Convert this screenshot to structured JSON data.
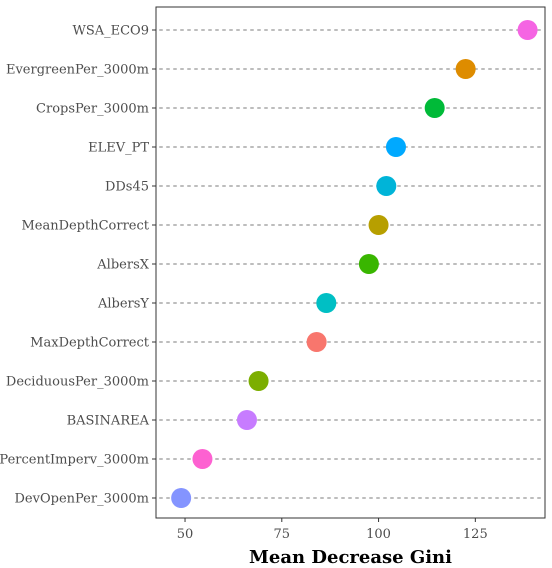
{
  "chart_data": {
    "type": "scatter",
    "subtype": "dot plot",
    "title": "",
    "xlabel": "Mean Decrease Gini",
    "ylabel": "",
    "xlim": [
      42.5,
      143
    ],
    "xticks": [
      50,
      75,
      100,
      125
    ],
    "grid": "dotted horizontal guide lines",
    "legend": "none",
    "categories": [
      "WSA_ECO9",
      "EvergreenPer_3000m",
      "CropsPer_3000m",
      "ELEV_PT",
      "DDs45",
      "MeanDepthCorrect",
      "AlbersX",
      "AlbersY",
      "MaxDepthCorrect",
      "DeciduousPer_3000m",
      "BASINAREA",
      "PercentImperv_3000m",
      "DevOpenPer_3000m"
    ],
    "values": [
      138.5,
      122.5,
      114.5,
      104.5,
      102,
      100,
      97.5,
      86.5,
      84,
      69,
      66,
      54.5,
      49
    ],
    "colors": [
      "#f564e3",
      "#de8c00",
      "#00ba38",
      "#00a9ff",
      "#00b4d8",
      "#b79f00",
      "#39b600",
      "#00bfc4",
      "#f8766d",
      "#7cae00",
      "#c77cff",
      "#fd61d1",
      "#8494ff"
    ]
  }
}
